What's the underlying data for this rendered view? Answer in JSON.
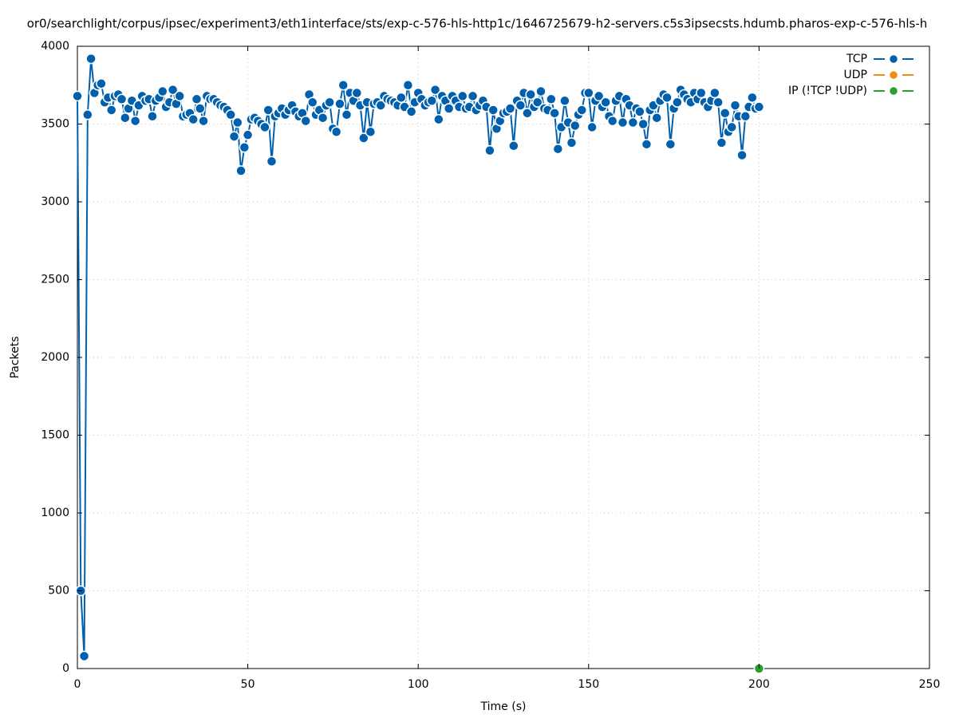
{
  "chart_data": {
    "type": "line",
    "title": "or0/searchlight/corpus/ipsec/experiment3/eth1interface/sts/exp-c-576-hls-http1c/1646725679-h2-servers.c5s3ipsecsts.hdumb.pharos-exp-c-576-hls-h",
    "xlabel": "Time (s)",
    "ylabel": "Packets",
    "xlim": [
      0,
      250
    ],
    "xticks": [
      0,
      50,
      100,
      150,
      200,
      250
    ],
    "ylim": [
      0,
      4000
    ],
    "yticks": [
      0,
      500,
      1000,
      1500,
      2000,
      2500,
      3000,
      3500,
      4000
    ],
    "grid": true,
    "legend": "upper right",
    "series": [
      {
        "name": "TCP",
        "color": "#0060ad",
        "x": [
          0,
          1,
          2,
          3,
          4,
          5,
          6,
          7,
          8,
          9,
          10,
          11,
          12,
          13,
          14,
          15,
          16,
          17,
          18,
          19,
          20,
          21,
          22,
          23,
          24,
          25,
          26,
          27,
          28,
          29,
          30,
          31,
          32,
          33,
          34,
          35,
          36,
          37,
          38,
          39,
          40,
          41,
          42,
          43,
          44,
          45,
          46,
          47,
          48,
          49,
          50,
          51,
          52,
          53,
          54,
          55,
          56,
          57,
          58,
          59,
          60,
          61,
          62,
          63,
          64,
          65,
          66,
          67,
          68,
          69,
          70,
          71,
          72,
          73,
          74,
          75,
          76,
          77,
          78,
          79,
          80,
          81,
          82,
          83,
          84,
          85,
          86,
          87,
          88,
          89,
          90,
          91,
          92,
          93,
          94,
          95,
          96,
          97,
          98,
          99,
          100,
          101,
          102,
          103,
          104,
          105,
          106,
          107,
          108,
          109,
          110,
          111,
          112,
          113,
          114,
          115,
          116,
          117,
          118,
          119,
          120,
          121,
          122,
          123,
          124,
          125,
          126,
          127,
          128,
          129,
          130,
          131,
          132,
          133,
          134,
          135,
          136,
          137,
          138,
          139,
          140,
          141,
          142,
          143,
          144,
          145,
          146,
          147,
          148,
          149,
          150,
          151,
          152,
          153,
          154,
          155,
          156,
          157,
          158,
          159,
          160,
          161,
          162,
          163,
          164,
          165,
          166,
          167,
          168,
          169,
          170,
          171,
          172,
          173,
          174,
          175,
          176,
          177,
          178,
          179,
          180,
          181,
          182,
          183,
          184,
          185,
          186,
          187,
          188,
          189,
          190,
          191,
          192,
          193,
          194,
          195,
          196,
          197,
          198,
          199,
          200
        ],
        "values": [
          3680,
          500,
          80,
          3560,
          3920,
          3700,
          3750,
          3760,
          3640,
          3670,
          3590,
          3680,
          3690,
          3660,
          3540,
          3600,
          3650,
          3520,
          3620,
          3680,
          3650,
          3660,
          3550,
          3650,
          3670,
          3710,
          3610,
          3640,
          3720,
          3630,
          3680,
          3550,
          3560,
          3570,
          3530,
          3660,
          3600,
          3520,
          3680,
          3660,
          3660,
          3640,
          3620,
          3610,
          3590,
          3560,
          3420,
          3510,
          3200,
          3350,
          3430,
          3530,
          3540,
          3520,
          3500,
          3480,
          3590,
          3260,
          3550,
          3570,
          3600,
          3560,
          3590,
          3620,
          3580,
          3550,
          3570,
          3520,
          3690,
          3640,
          3560,
          3590,
          3540,
          3620,
          3640,
          3470,
          3450,
          3630,
          3750,
          3560,
          3700,
          3650,
          3700,
          3620,
          3410,
          3640,
          3450,
          3630,
          3640,
          3620,
          3680,
          3660,
          3650,
          3640,
          3620,
          3670,
          3610,
          3750,
          3580,
          3640,
          3700,
          3660,
          3620,
          3640,
          3650,
          3720,
          3530,
          3680,
          3650,
          3600,
          3680,
          3650,
          3610,
          3680,
          3600,
          3610,
          3680,
          3590,
          3620,
          3650,
          3610,
          3330,
          3590,
          3470,
          3520,
          3570,
          3580,
          3600,
          3360,
          3650,
          3620,
          3700,
          3570,
          3690,
          3610,
          3640,
          3710,
          3600,
          3590,
          3660,
          3570,
          3340,
          3480,
          3650,
          3510,
          3380,
          3490,
          3560,
          3590,
          3700,
          3700,
          3480,
          3650,
          3680,
          3610,
          3640,
          3550,
          3520,
          3650,
          3680,
          3510,
          3660,
          3620,
          3510,
          3600,
          3580,
          3500,
          3370,
          3590,
          3620,
          3540,
          3650,
          3690,
          3670,
          3370,
          3600,
          3640,
          3720,
          3690,
          3660,
          3640,
          3700,
          3660,
          3700,
          3640,
          3610,
          3650,
          3700,
          3640,
          3380,
          3570,
          3450,
          3480,
          3620,
          3550,
          3300,
          3550,
          3610,
          3670,
          3600,
          3610
        ]
      },
      {
        "name": "UDP",
        "color": "#f28a1a",
        "x": [],
        "values": []
      },
      {
        "name": "IP (!TCP  !UDP)",
        "color": "#2ca02c",
        "x": [
          200
        ],
        "values": [
          0
        ]
      }
    ]
  }
}
